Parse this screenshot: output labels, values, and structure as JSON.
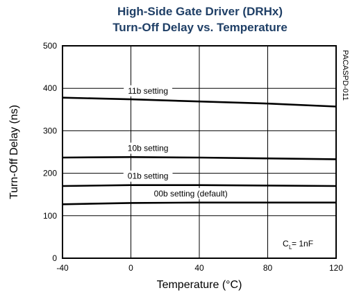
{
  "chart_data": {
    "type": "line",
    "title_lines": [
      "High-Side Gate Driver (DRHx)",
      "Turn-Off Delay vs. Temperature"
    ],
    "xlabel": "Temperature (°C)",
    "ylabel": "Turn-Off Delay (ns)",
    "xlim": [
      -40,
      120
    ],
    "ylim": [
      0,
      500
    ],
    "x_ticks": [
      -40,
      0,
      40,
      80,
      120
    ],
    "y_ticks": [
      0,
      100,
      200,
      300,
      400,
      500
    ],
    "grid": true,
    "series": [
      {
        "name": "11b setting",
        "x": [
          -40,
          0,
          40,
          80,
          120
        ],
        "y": [
          378,
          374,
          369,
          364,
          357
        ],
        "label_x": 10
      },
      {
        "name": "10b setting",
        "x": [
          -40,
          0,
          40,
          80,
          120
        ],
        "y": [
          237,
          238,
          237,
          235,
          233
        ],
        "label_x": 10
      },
      {
        "name": "01b setting",
        "x": [
          -40,
          0,
          40,
          80,
          120
        ],
        "y": [
          170,
          172,
          172,
          171,
          170
        ],
        "label_x": 10
      },
      {
        "name": "00b setting (default)",
        "x": [
          -40,
          0,
          40,
          80,
          120
        ],
        "y": [
          127,
          130,
          131,
          131,
          131
        ],
        "label_x": 35
      }
    ],
    "annotation": {
      "prefix": "C",
      "subscript": "L",
      "suffix": " = 1nF"
    },
    "figure_id": "PACASPD-011"
  }
}
